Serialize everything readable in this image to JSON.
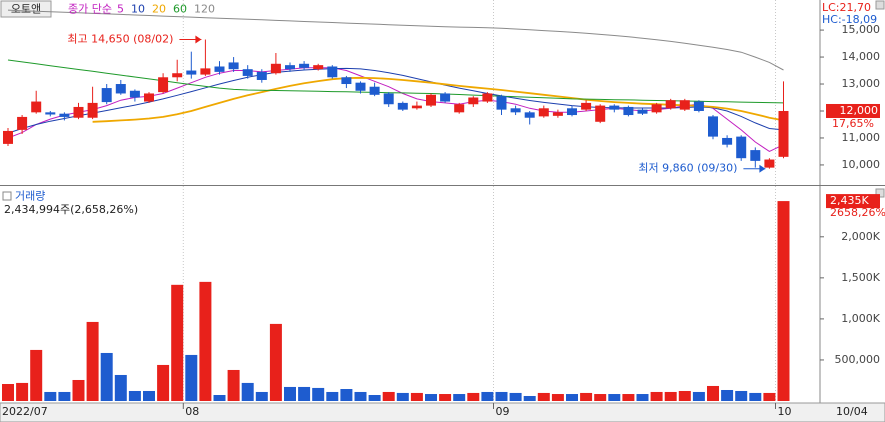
{
  "chart_data": [
    {
      "type": "candlestick",
      "title": "오토앤",
      "legend_label": "종가 단순",
      "lc_label": "LC:21,70",
      "hc_label": "HC:-18,09",
      "high_label": "최고 14,650 (08/02)",
      "low_label": "최저 9,860 (09/30)",
      "last_price_label": "12,000",
      "change_label": "17,65%",
      "date_label": "10/04",
      "up_color": "#e8211b",
      "down_color": "#1e5ccf",
      "categories": [
        "2022/07",
        null,
        null,
        null,
        null,
        null,
        null,
        null,
        null,
        null,
        null,
        null,
        null,
        "08",
        null,
        null,
        null,
        null,
        null,
        null,
        null,
        null,
        null,
        null,
        null,
        null,
        null,
        null,
        null,
        null,
        null,
        null,
        null,
        null,
        null,
        "09",
        null,
        null,
        null,
        null,
        null,
        null,
        null,
        null,
        null,
        null,
        null,
        null,
        null,
        null,
        null,
        null,
        null,
        null,
        null,
        "10"
      ],
      "open": [
        10780,
        11300,
        11950,
        11950,
        11900,
        11750,
        11750,
        12850,
        13000,
        12750,
        12350,
        12700,
        13250,
        13500,
        13350,
        13650,
        13800,
        13550,
        13450,
        13400,
        13700,
        13750,
        13550,
        13650,
        13250,
        13050,
        12900,
        12650,
        12300,
        12100,
        12200,
        12650,
        11950,
        12250,
        12350,
        12550,
        12100,
        11950,
        11800,
        11820,
        12100,
        12050,
        11600,
        12200,
        12150,
        12050,
        11950,
        12100,
        12050,
        12350,
        11800,
        11000,
        11050,
        10550,
        9900,
        10300
      ],
      "high": [
        11370,
        11850,
        12750,
        12000,
        11950,
        12300,
        12900,
        13000,
        13150,
        12800,
        12700,
        13400,
        13900,
        14200,
        14650,
        13850,
        14000,
        13700,
        13550,
        14150,
        13800,
        13850,
        13750,
        13700,
        13300,
        13100,
        13050,
        12700,
        12350,
        12350,
        12650,
        12700,
        12300,
        12550,
        12700,
        12600,
        12200,
        12000,
        12200,
        12050,
        12200,
        12400,
        12250,
        12250,
        12200,
        12100,
        12300,
        12450,
        12450,
        12400,
        11850,
        11100,
        11100,
        10650,
        10250,
        13100
      ],
      "low": [
        10700,
        11150,
        11900,
        11800,
        11650,
        11700,
        11700,
        12250,
        12600,
        12350,
        12300,
        12650,
        13100,
        13200,
        13300,
        13350,
        13450,
        13200,
        13050,
        13350,
        13450,
        13500,
        13500,
        13200,
        12850,
        12650,
        12550,
        12150,
        12000,
        12050,
        12150,
        12300,
        11900,
        12150,
        12300,
        11850,
        11850,
        11500,
        11750,
        11750,
        11800,
        12000,
        11550,
        11950,
        11800,
        11850,
        11900,
        12050,
        12000,
        11950,
        10950,
        10650,
        10150,
        9900,
        9860,
        10250
      ],
      "close": [
        11260,
        11780,
        12350,
        11870,
        11780,
        12150,
        12300,
        12330,
        12650,
        12500,
        12650,
        13250,
        13400,
        13350,
        13580,
        13450,
        13550,
        13300,
        13150,
        13750,
        13550,
        13600,
        13700,
        13250,
        13000,
        12750,
        12600,
        12250,
        12050,
        12200,
        12600,
        12350,
        12250,
        12500,
        12650,
        12050,
        11950,
        11750,
        12100,
        11950,
        11850,
        12300,
        12200,
        12050,
        11850,
        11900,
        12250,
        12400,
        12400,
        12000,
        11050,
        10750,
        10250,
        10150,
        10200,
        12000
      ],
      "series": [
        {
          "name": "5",
          "color": "#c21fc0",
          "values": [
            11000,
            11200,
            11500,
            11700,
            11850,
            11950,
            12050,
            12200,
            12400,
            12500,
            12550,
            12650,
            12850,
            13050,
            13250,
            13400,
            13500,
            13500,
            13450,
            13500,
            13550,
            13600,
            13600,
            13600,
            13500,
            13300,
            13100,
            12900,
            12650,
            12450,
            12350,
            12300,
            12250,
            12350,
            12400,
            12350,
            12250,
            12100,
            12000,
            11950,
            11950,
            12000,
            12050,
            12100,
            12050,
            12000,
            12050,
            12100,
            12200,
            12250,
            12100,
            11700,
            11300,
            10850,
            10500,
            10750
          ]
        },
        {
          "name": "10",
          "color": "#1c3fae",
          "values": [
            11180,
            11350,
            11500,
            11620,
            11720,
            11820,
            11920,
            12020,
            12120,
            12220,
            12330,
            12450,
            12580,
            12720,
            12860,
            13000,
            13130,
            13250,
            13350,
            13430,
            13480,
            13520,
            13550,
            13570,
            13580,
            13560,
            13500,
            13420,
            13320,
            13200,
            13080,
            12960,
            12850,
            12750,
            12650,
            12560,
            12470,
            12390,
            12320,
            12260,
            12200,
            12160,
            12130,
            12120,
            12110,
            12110,
            12110,
            12110,
            12130,
            12150,
            12120,
            12000,
            11800,
            11560,
            11350,
            11300
          ]
        },
        {
          "name": "20",
          "color": "#efa800",
          "values": [
            null,
            null,
            null,
            null,
            null,
            null,
            11600,
            11620,
            11650,
            11680,
            11720,
            11780,
            11880,
            12000,
            12150,
            12300,
            12450,
            12580,
            12700,
            12820,
            12930,
            13030,
            13110,
            13180,
            13220,
            13230,
            13220,
            13190,
            13150,
            13100,
            13050,
            12990,
            12930,
            12880,
            12830,
            12780,
            12720,
            12660,
            12600,
            12540,
            12480,
            12420,
            12370,
            12330,
            12300,
            12270,
            12250,
            12230,
            12210,
            12190,
            12150,
            12090,
            12000,
            11880,
            11750,
            11650
          ]
        },
        {
          "name": "60",
          "color": "#1e9a2a",
          "values": [
            13890,
            13820,
            13750,
            13680,
            13610,
            13540,
            13470,
            13400,
            13330,
            13260,
            13190,
            13120,
            13050,
            12980,
            12910,
            12850,
            12800,
            12780,
            12770,
            12760,
            12750,
            12740,
            12730,
            12720,
            12710,
            12700,
            12690,
            12680,
            12670,
            12660,
            12650,
            12630,
            12610,
            12590,
            12570,
            12550,
            12530,
            12510,
            12490,
            12470,
            12450,
            12440,
            12430,
            12420,
            12410,
            12400,
            12390,
            12380,
            12370,
            12360,
            12350,
            12340,
            12330,
            12320,
            12310,
            12300
          ]
        },
        {
          "name": "120",
          "color": "#8a8a8a",
          "values": [
            15740,
            15720,
            15700,
            15680,
            15660,
            15640,
            15620,
            15600,
            15580,
            15560,
            15540,
            15520,
            15500,
            15480,
            15460,
            15440,
            15420,
            15400,
            15380,
            15360,
            15340,
            15320,
            15300,
            15280,
            15260,
            15240,
            15220,
            15200,
            15180,
            15160,
            15140,
            15120,
            15110,
            15100,
            15090,
            15070,
            15040,
            15010,
            14980,
            14950,
            14920,
            14880,
            14840,
            14800,
            14750,
            14700,
            14640,
            14580,
            14510,
            14440,
            14360,
            14280,
            14180,
            14000,
            13800,
            13520
          ]
        }
      ],
      "ylim": [
        9330,
        15930
      ],
      "yticks": [
        {
          "value": 10000,
          "label": "10,000"
        },
        {
          "value": 11000,
          "label": "11,000"
        },
        {
          "value": 12000,
          "label": "12,000"
        },
        {
          "value": 13000,
          "label": "13,000"
        },
        {
          "value": 14000,
          "label": "14,000"
        },
        {
          "value": 15000,
          "label": "15,000"
        }
      ]
    },
    {
      "type": "bar",
      "title": "거래량",
      "subtitle": "2,434,994주(2,658,26%)",
      "last_value_label": "2,435K",
      "change_label": "2658,26%",
      "values": [
        207000,
        220000,
        622000,
        110000,
        110000,
        256000,
        963000,
        585000,
        317000,
        122000,
        122000,
        439000,
        1415000,
        561000,
        1451000,
        73000,
        378000,
        220000,
        110000,
        939000,
        171000,
        171000,
        159000,
        110000,
        146000,
        110000,
        73000,
        110000,
        98000,
        98000,
        85000,
        85000,
        85000,
        98000,
        110000,
        110000,
        98000,
        61000,
        98000,
        85000,
        85000,
        98000,
        85000,
        85000,
        85000,
        85000,
        110000,
        110000,
        122000,
        110000,
        183000,
        134000,
        122000,
        98000,
        98000,
        2434994
      ],
      "colors": [
        "#e8211b",
        "#e8211b",
        "#e8211b",
        "#1e5ccf",
        "#1e5ccf",
        "#e8211b",
        "#e8211b",
        "#1e5ccf",
        "#1e5ccf",
        "#1e5ccf",
        "#1e5ccf",
        "#e8211b",
        "#e8211b",
        "#1e5ccf",
        "#e8211b",
        "#1e5ccf",
        "#e8211b",
        "#1e5ccf",
        "#1e5ccf",
        "#e8211b",
        "#1e5ccf",
        "#1e5ccf",
        "#1e5ccf",
        "#1e5ccf",
        "#1e5ccf",
        "#1e5ccf",
        "#1e5ccf",
        "#e8211b",
        "#1e5ccf",
        "#e8211b",
        "#1e5ccf",
        "#e8211b",
        "#1e5ccf",
        "#e8211b",
        "#1e5ccf",
        "#1e5ccf",
        "#1e5ccf",
        "#1e5ccf",
        "#e8211b",
        "#e8211b",
        "#1e5ccf",
        "#e8211b",
        "#e8211b",
        "#1e5ccf",
        "#e8211b",
        "#1e5ccf",
        "#e8211b",
        "#e8211b",
        "#e8211b",
        "#1e5ccf",
        "#e8211b",
        "#1e5ccf",
        "#1e5ccf",
        "#1e5ccf",
        "#e8211b",
        "#e8211b"
      ],
      "ylim": [
        0,
        2570000
      ],
      "yticks": [
        {
          "value": 500000,
          "label": "500,000"
        },
        {
          "value": 1000000,
          "label": "1,000K"
        },
        {
          "value": 1500000,
          "label": "1,500K"
        },
        {
          "value": 2000000,
          "label": "2,000K"
        }
      ]
    }
  ]
}
